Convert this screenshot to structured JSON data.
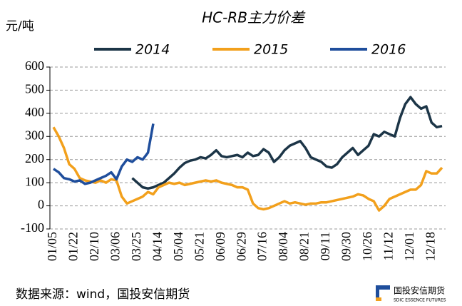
{
  "chart_data": {
    "type": "line",
    "title": "HC-RB主力价差",
    "y_label": "元/吨",
    "source": "数据来源：wind，国投安信期货",
    "logo": {
      "name": "国投安信期货",
      "sub": "SDIC ESSENCE FUTURES"
    },
    "categories": [
      "01/05",
      null,
      null,
      null,
      "01/22",
      null,
      null,
      null,
      "02/10",
      null,
      null,
      null,
      "03/06",
      null,
      null,
      null,
      "03/25",
      null,
      null,
      null,
      "04/14",
      null,
      null,
      null,
      "05/04",
      null,
      null,
      null,
      "05/21",
      null,
      null,
      null,
      "06/09",
      null,
      null,
      null,
      "06/29",
      null,
      null,
      null,
      "07/16",
      null,
      null,
      null,
      "08/04",
      null,
      null,
      null,
      "08/21",
      null,
      null,
      null,
      "09/11",
      null,
      null,
      null,
      "09/30",
      null,
      null,
      null,
      "10/26",
      null,
      null,
      null,
      "11/12",
      null,
      null,
      null,
      "12/01",
      null,
      null,
      null,
      "12/18",
      null,
      null
    ],
    "series": [
      {
        "name": "2014",
        "color": "#1c3547",
        "values": [
          null,
          null,
          null,
          null,
          null,
          null,
          null,
          null,
          null,
          null,
          null,
          null,
          null,
          null,
          null,
          120,
          100,
          80,
          75,
          80,
          90,
          100,
          120,
          140,
          165,
          185,
          195,
          200,
          210,
          205,
          220,
          240,
          215,
          210,
          215,
          220,
          210,
          230,
          215,
          220,
          245,
          230,
          190,
          210,
          240,
          260,
          270,
          280,
          250,
          210,
          200,
          190,
          170,
          165,
          180,
          210,
          230,
          250,
          220,
          240,
          260,
          310,
          300,
          320,
          310,
          300,
          380,
          440,
          470,
          440,
          420,
          430,
          360,
          340,
          345
        ]
      },
      {
        "name": "2015",
        "color": "#f2a01c",
        "values": [
          340,
          300,
          250,
          180,
          160,
          120,
          110,
          105,
          100,
          110,
          100,
          115,
          110,
          40,
          10,
          20,
          30,
          40,
          60,
          50,
          80,
          90,
          100,
          95,
          100,
          90,
          95,
          100,
          105,
          110,
          105,
          110,
          100,
          95,
          90,
          80,
          80,
          70,
          10,
          -10,
          -15,
          -10,
          0,
          10,
          20,
          10,
          15,
          10,
          5,
          10,
          10,
          15,
          15,
          20,
          25,
          30,
          35,
          40,
          50,
          45,
          30,
          20,
          -20,
          0,
          30,
          40,
          50,
          60,
          70,
          70,
          90,
          150,
          140,
          140,
          165
        ]
      },
      {
        "name": "2016",
        "color": "#1f4e9c",
        "values": [
          160,
          145,
          120,
          115,
          105,
          110,
          95,
          100,
          110,
          120,
          130,
          145,
          115,
          170,
          200,
          190,
          210,
          200,
          230,
          355,
          null,
          null,
          null,
          null,
          null,
          null,
          null,
          null,
          null,
          null,
          null,
          null,
          null,
          null,
          null,
          null,
          null,
          null,
          null,
          null,
          null,
          null,
          null,
          null,
          null,
          null,
          null,
          null,
          null,
          null,
          null,
          null,
          null,
          null,
          null,
          null,
          null,
          null,
          null,
          null,
          null,
          null,
          null,
          null,
          null,
          null,
          null,
          null,
          null,
          null,
          null,
          null,
          null,
          null,
          null
        ]
      }
    ],
    "ylim": [
      -100,
      600
    ],
    "yticks": [
      -100,
      0,
      100,
      200,
      300,
      400,
      500,
      600
    ],
    "grid": true
  }
}
